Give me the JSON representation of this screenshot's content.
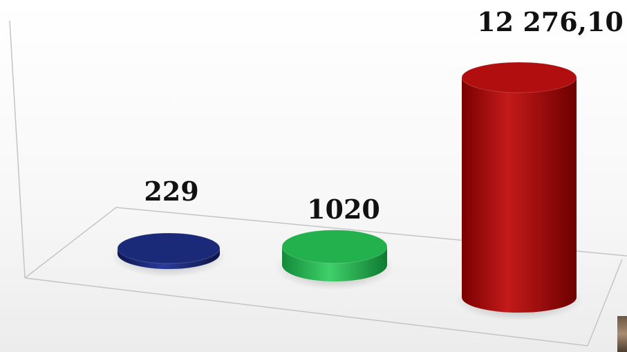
{
  "chart_data": {
    "type": "bar",
    "style": "3d-cylinder",
    "categories": [
      "",
      "",
      ""
    ],
    "values": [
      229,
      1020,
      12276.1
    ],
    "value_labels": [
      "229",
      "1020",
      "12 276,10"
    ],
    "colors": [
      "#1b2a78",
      "#22b14c",
      "#b10f0f"
    ],
    "title": "",
    "xlabel": "",
    "ylabel": "",
    "ylim": [
      0,
      12276.1
    ],
    "grid": false,
    "legend": "none"
  }
}
